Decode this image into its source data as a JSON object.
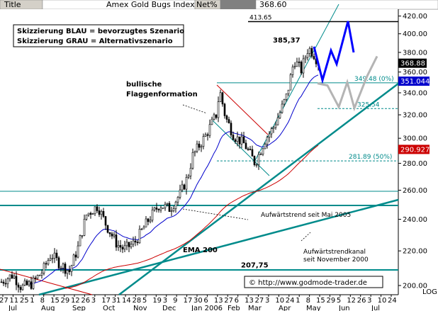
{
  "header": {
    "cells": [
      "Title",
      "Amex Gold Bugs Index",
      "Net%",
      "368.60"
    ]
  },
  "legend": {
    "line1": "Skizzierung BLAU = bevorzugtes Szenario",
    "line2": "Skizzierung GRAU = Alternativszenario"
  },
  "chart_data": {
    "type": "candlestick",
    "y_scale": "log",
    "ylim": [
      195,
      428
    ],
    "y_ticks": [
      200,
      220,
      240,
      260,
      280,
      300,
      320,
      340,
      360,
      380,
      400,
      420
    ],
    "y_axis_label": "LOG",
    "x_tick_days": [
      "27",
      "11",
      "25",
      "1",
      "8",
      "15",
      "29",
      "12",
      "26",
      "3",
      "17",
      "31",
      "14",
      "28",
      "5",
      "19",
      "3",
      "9",
      "17",
      "30",
      "6",
      "13",
      "27",
      "6",
      "13",
      "27",
      "3",
      "10",
      "24",
      "1",
      "8",
      "15",
      "29",
      "5",
      "12",
      "26",
      "3",
      "10",
      "24"
    ],
    "x_months": [
      "Jul",
      "Aug",
      "Sep",
      "Oct",
      "Nov",
      "Dec",
      "Jan 2006",
      "Feb",
      "Mar",
      "Apr",
      "May",
      "Jun",
      "Jul"
    ],
    "price_labels": {
      "last_close": 368.88,
      "ema_value": 351.044,
      "ema200_value": 290.927
    },
    "levels": [
      {
        "value": 413.65,
        "label": "413.65"
      },
      {
        "value": 349.48,
        "label": "349.48 (0%)"
      },
      {
        "value": 325.54,
        "label": "325.54"
      },
      {
        "value": 281.89,
        "label": "281.89 (50%)"
      },
      {
        "value": 207.75,
        "label": "207,75"
      }
    ],
    "annotations": {
      "peak": "385,37",
      "flag_line1": "bullische",
      "flag_line2": "Flaggenformation",
      "ema200": "EMA 200",
      "trend1": "Aufwärtstrend seit Mai 2005",
      "channel1": "Aufwärtstrendkanal",
      "channel2": "seit November 2000",
      "copyright": "© http://www.godmode-trader.de"
    },
    "scenarios": {
      "blue": [
        386,
        352,
        382,
        368,
        414,
        380
      ],
      "grey": [
        349,
        347,
        327,
        350,
        326,
        356,
        376
      ]
    },
    "colors": {
      "blue_scenario": "#0000ff",
      "grey_scenario": "#b4b4b4",
      "ema_short": "#0000cc",
      "ema200": "#cc0000",
      "trendline": "#008b8b",
      "last_box": "#000000",
      "ema_box": "#0000cc",
      "ema200_box": "#cc0000"
    }
  }
}
